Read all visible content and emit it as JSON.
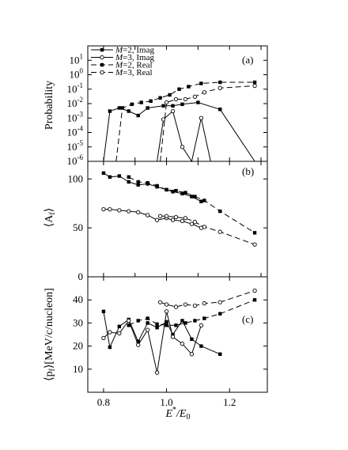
{
  "chart_data": [
    {
      "type": "line",
      "panel_label": "(a)",
      "ylabel": "Probability",
      "xlabel": "",
      "y_scale": "log",
      "ylim": [
        1e-06,
        100
      ],
      "y_ticks": [
        {
          "value": 1e-06,
          "base": "10",
          "exp": "-6"
        },
        {
          "value": 1e-05,
          "base": "10",
          "exp": "-5"
        },
        {
          "value": 0.0001,
          "base": "10",
          "exp": "-4"
        },
        {
          "value": 0.001,
          "base": "10",
          "exp": "-3"
        },
        {
          "value": 0.01,
          "base": "10",
          "exp": "-2"
        },
        {
          "value": 0.1,
          "base": "10",
          "exp": "-1"
        },
        {
          "value": 1,
          "base": "10",
          "exp": "0"
        },
        {
          "value": 10,
          "base": "10",
          "exp": "1"
        }
      ],
      "xlim": [
        0.75,
        1.32
      ],
      "x_ticks": [
        0.8,
        0.9,
        1.0,
        1.1,
        1.2,
        1.3
      ],
      "legend": [
        {
          "m": "M",
          "rest": "=2, Imag",
          "marker": "filled",
          "dash": "solid"
        },
        {
          "m": "M",
          "rest": "=3, Imag",
          "marker": "open",
          "dash": "solid"
        },
        {
          "m": "M",
          "rest": "=2, Real",
          "marker": "filled",
          "dash": "dashed"
        },
        {
          "m": "M",
          "rest": "=3, Real",
          "marker": "open",
          "dash": "dashed"
        }
      ],
      "series": [
        {
          "name": "M=2, Imag",
          "marker": "filled",
          "dash": "solid",
          "x": [
            0.8,
            0.82,
            0.85,
            0.88,
            0.91,
            0.94,
            0.99,
            1.02,
            1.05,
            1.1,
            1.17,
            1.28
          ],
          "y": [
            1e-06,
            0.003,
            0.005,
            0.003,
            0.0015,
            0.005,
            0.007,
            0.007,
            0.009,
            0.012,
            0.004,
            1e-06
          ]
        },
        {
          "name": "M=3, Imag",
          "marker": "open",
          "dash": "solid",
          "x": [
            0.97,
            0.99,
            1.02,
            1.05,
            1.08,
            1.11,
            1.14
          ],
          "y": [
            1e-06,
            0.0008,
            0.003,
            1e-05,
            1e-06,
            0.001,
            1e-06
          ]
        },
        {
          "name": "M=2, Real",
          "marker": "filled",
          "dash": "dashed",
          "x": [
            0.84,
            0.86,
            0.89,
            0.92,
            0.95,
            0.98,
            1.01,
            1.04,
            1.07,
            1.11,
            1.17,
            1.28
          ],
          "y": [
            1e-06,
            0.005,
            0.009,
            0.012,
            0.015,
            0.025,
            0.04,
            0.1,
            0.15,
            0.25,
            0.3,
            0.3
          ]
        },
        {
          "name": "M=3, Real",
          "marker": "open",
          "dash": "dashed",
          "x": [
            0.98,
            1.0,
            1.03,
            1.06,
            1.09,
            1.12,
            1.17,
            1.28
          ],
          "y": [
            1e-06,
            0.012,
            0.02,
            0.02,
            0.03,
            0.06,
            0.12,
            0.17
          ]
        }
      ]
    },
    {
      "type": "line",
      "panel_label": "(b)",
      "ylabel": "⟨A_f⟩",
      "ylabel_main": "⟨A",
      "ylabel_sub": "f",
      "ylabel_close": "⟩",
      "xlabel": "",
      "ylim": [
        0,
        118
      ],
      "y_ticks": [
        0,
        50,
        100
      ],
      "xlim": [
        0.75,
        1.32
      ],
      "x_ticks": [
        0.8,
        0.9,
        1.0,
        1.1,
        1.2,
        1.3
      ],
      "series": [
        {
          "name": "M=2, Imag",
          "marker": "filled",
          "dash": "solid",
          "x": [
            0.8,
            0.82,
            0.85,
            0.88,
            0.91,
            0.94,
            0.97,
            1.0,
            1.02,
            1.05,
            1.08,
            1.11
          ],
          "y": [
            106,
            102,
            103,
            97,
            94,
            95,
            92,
            89,
            87,
            85,
            82,
            77
          ]
        },
        {
          "name": "M=3, Imag",
          "marker": "open",
          "dash": "solid",
          "x": [
            0.8,
            0.82,
            0.85,
            0.88,
            0.91,
            0.94,
            0.97,
            1.0,
            1.02,
            1.05,
            1.08,
            1.11
          ],
          "y": [
            69,
            69,
            68,
            67,
            66,
            63,
            58,
            60,
            58,
            57,
            54,
            50
          ]
        },
        {
          "name": "M=2, Real",
          "marker": "filled",
          "dash": "dashed",
          "x": [
            0.88,
            0.91,
            0.94,
            0.97,
            1.0,
            1.03,
            1.06,
            1.09,
            1.12,
            1.17,
            1.28
          ],
          "y": [
            102,
            97,
            96,
            93,
            89,
            88,
            86,
            82,
            78,
            67,
            45
          ]
        },
        {
          "name": "M=3, Real",
          "marker": "open",
          "dash": "dashed",
          "x": [
            0.98,
            1.0,
            1.03,
            1.06,
            1.09,
            1.12,
            1.17,
            1.28
          ],
          "y": [
            62,
            62,
            61,
            60,
            56,
            51,
            46,
            33
          ]
        }
      ]
    },
    {
      "type": "line",
      "panel_label": "(c)",
      "ylabel": "⟨p_f⟩[MeV/c/nucleon]",
      "ylabel_main": "⟨p",
      "ylabel_sub": "f",
      "ylabel_close": "⟩[MeV/c/nucleon]",
      "xlabel": "E*/E0",
      "xlabel_main": "E",
      "xlabel_sup": "*",
      "xlabel_mid": "/E",
      "xlabel_sub": "0",
      "ylim": [
        0,
        50
      ],
      "y_ticks": [
        10,
        20,
        30,
        40
      ],
      "xlim": [
        0.75,
        1.32
      ],
      "x_ticks": [
        0.8,
        1.0,
        1.2
      ],
      "series": [
        {
          "name": "M=2, Imag",
          "marker": "filled",
          "dash": "solid",
          "x": [
            0.8,
            0.82,
            0.85,
            0.88,
            0.91,
            0.94,
            0.97,
            1.0,
            1.02,
            1.05,
            1.08,
            1.11,
            1.17
          ],
          "y": [
            35,
            19.5,
            28.5,
            31.5,
            22,
            30,
            28,
            30.5,
            25,
            31,
            23,
            20,
            16.5
          ]
        },
        {
          "name": "M=3, Imag",
          "marker": "open",
          "dash": "solid",
          "x": [
            0.8,
            0.82,
            0.85,
            0.88,
            0.91,
            0.94,
            0.97,
            1.0,
            1.02,
            1.05,
            1.08,
            1.11
          ],
          "y": [
            23.5,
            26,
            25.5,
            31,
            20.5,
            27,
            8.5,
            35,
            24,
            21,
            16.5,
            29
          ]
        },
        {
          "name": "M=2, Real",
          "marker": "filled",
          "dash": "dashed",
          "x": [
            0.88,
            0.91,
            0.94,
            0.97,
            1.0,
            1.03,
            1.06,
            1.09,
            1.12,
            1.17,
            1.28
          ],
          "y": [
            29,
            31,
            32,
            29.5,
            29,
            29,
            30,
            31,
            32,
            34,
            40
          ]
        },
        {
          "name": "M=3, Real",
          "marker": "open",
          "dash": "dashed",
          "x": [
            0.98,
            1.0,
            1.03,
            1.06,
            1.09,
            1.12,
            1.17,
            1.28
          ],
          "y": [
            39,
            38,
            37,
            38,
            37.5,
            38.5,
            39,
            44
          ]
        }
      ]
    }
  ]
}
